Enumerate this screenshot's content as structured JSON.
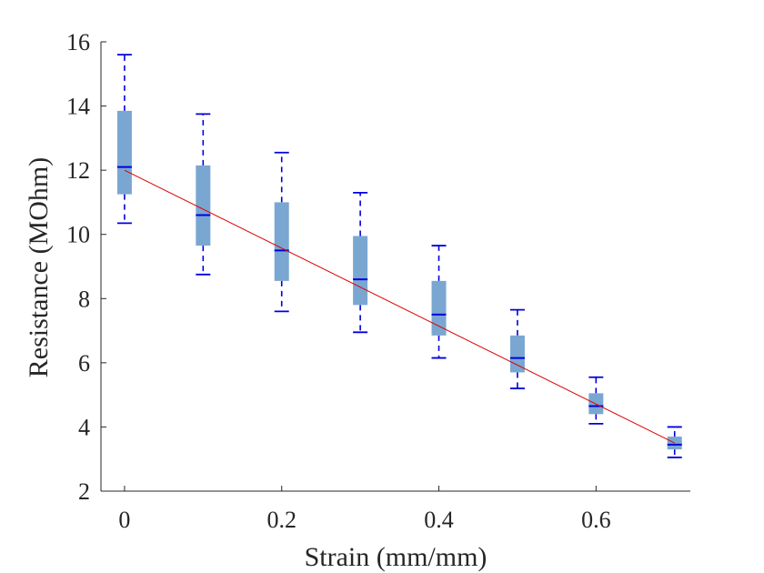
{
  "chart_data": {
    "type": "boxplot",
    "title": "",
    "xlabel": "Strain (mm/mm)",
    "ylabel": "Resistance (MOhm)",
    "xlim": [
      -0.03,
      0.72
    ],
    "ylim": [
      2,
      16
    ],
    "xticks": [
      0,
      0.2,
      0.4,
      0.6
    ],
    "xtick_labels": [
      "0",
      "0.2",
      "0.4",
      "0.6"
    ],
    "yticks": [
      2,
      4,
      6,
      8,
      10,
      12,
      14,
      16
    ],
    "ytick_labels": [
      "2",
      "4",
      "6",
      "8",
      "10",
      "12",
      "14",
      "16"
    ],
    "grid": false,
    "box_color": "#7aa7d1",
    "whisker_color": "#0000dd",
    "median_color": "#0000dd",
    "fit_line_color": "#dd0000",
    "boxes": [
      {
        "x": 0.0,
        "min": 10.35,
        "q1": 11.25,
        "median": 12.1,
        "q3": 13.85,
        "max": 15.6
      },
      {
        "x": 0.1,
        "min": 8.75,
        "q1": 9.65,
        "median": 10.6,
        "q3": 12.15,
        "max": 13.75
      },
      {
        "x": 0.2,
        "min": 7.6,
        "q1": 8.55,
        "median": 9.5,
        "q3": 11.0,
        "max": 12.55
      },
      {
        "x": 0.3,
        "min": 6.95,
        "q1": 7.8,
        "median": 8.6,
        "q3": 9.95,
        "max": 11.3
      },
      {
        "x": 0.4,
        "min": 6.15,
        "q1": 6.85,
        "median": 7.5,
        "q3": 8.55,
        "max": 9.65
      },
      {
        "x": 0.5,
        "min": 5.2,
        "q1": 5.7,
        "median": 6.15,
        "q3": 6.85,
        "max": 7.65
      },
      {
        "x": 0.6,
        "min": 4.1,
        "q1": 4.4,
        "median": 4.65,
        "q3": 5.05,
        "max": 5.55
      },
      {
        "x": 0.7,
        "min": 3.05,
        "q1": 3.3,
        "median": 3.45,
        "q3": 3.7,
        "max": 4.0
      }
    ],
    "fit_line": {
      "x": [
        0.0,
        0.7
      ],
      "y": [
        12.0,
        3.5
      ]
    }
  }
}
